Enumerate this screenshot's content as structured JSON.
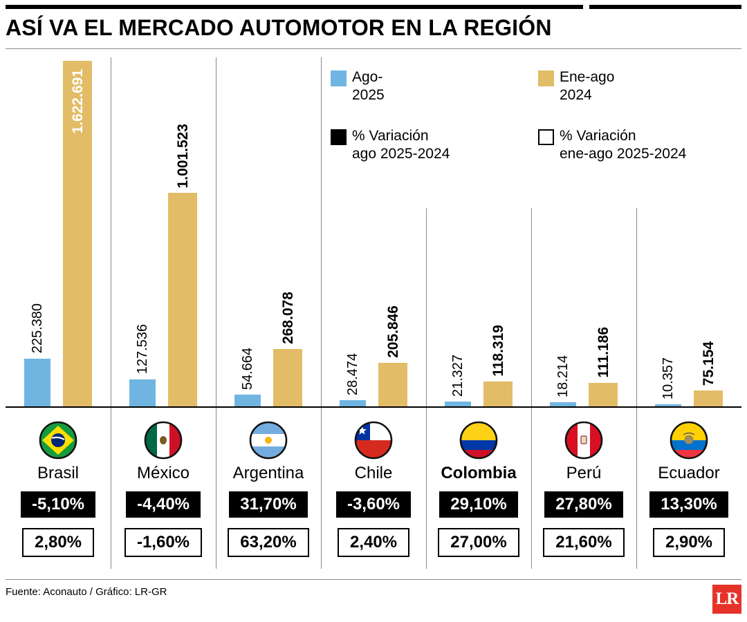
{
  "title": "ASÍ VA EL MERCADO AUTOMOTOR EN LA REGIÓN",
  "legend": {
    "items": [
      {
        "id": "ago-2025",
        "line1": "Ago-",
        "line2": "2025",
        "swatch_color": "#70b5e2"
      },
      {
        "id": "ene-ago-2024",
        "line1": "Ene-ago",
        "line2": "2024",
        "swatch_color": "#e2bc66"
      },
      {
        "id": "var-ago",
        "line1": "% Variación",
        "line2": "ago 2025-2024",
        "swatch_color": "#000000"
      },
      {
        "id": "var-ene-ago",
        "line1": "% Variación",
        "line2": "ene-ago 2025-2024",
        "swatch_color": "#ffffff"
      }
    ]
  },
  "chart_data": {
    "type": "bar",
    "title": "ASÍ VA EL MERCADO AUTOMOTOR EN LA REGIÓN",
    "series_names": [
      "Ago-2025",
      "Ene-ago 2024"
    ],
    "ylim": [
      0,
      1622691
    ],
    "grid": false,
    "legend_position": "top-right",
    "bar_colors": {
      "ago_2025": "#70b5e2",
      "ene_ago_2024": "#e2bc66"
    },
    "countries": [
      {
        "name": "Brasil",
        "ago_2025": 225380,
        "ago_2025_label": "225.380",
        "ene_ago_2024": 1622691,
        "ene_ago_2024_label": "1.622.691",
        "var_ago_2025_2024": "-5,10%",
        "var_ene_ago_2025_2024": "2,80%",
        "value_label_inside_bar": true
      },
      {
        "name": "México",
        "ago_2025": 127536,
        "ago_2025_label": "127.536",
        "ene_ago_2024": 1001523,
        "ene_ago_2024_label": "1.001.523",
        "var_ago_2025_2024": "-4,40%",
        "var_ene_ago_2025_2024": "-1,60%"
      },
      {
        "name": "Argentina",
        "ago_2025": 54664,
        "ago_2025_label": "54.664",
        "ene_ago_2024": 268078,
        "ene_ago_2024_label": "268.078",
        "var_ago_2025_2024": "31,70%",
        "var_ene_ago_2025_2024": "63,20%"
      },
      {
        "name": "Chile",
        "ago_2025": 28474,
        "ago_2025_label": "28.474",
        "ene_ago_2024": 205846,
        "ene_ago_2024_label": "205.846",
        "var_ago_2025_2024": "-3,60%",
        "var_ene_ago_2025_2024": "2,40%"
      },
      {
        "name": "Colombia",
        "ago_2025": 21327,
        "ago_2025_label": "21.327",
        "ene_ago_2024": 118319,
        "ene_ago_2024_label": "118.319",
        "var_ago_2025_2024": "29,10%",
        "var_ene_ago_2025_2024": "27,00%"
      },
      {
        "name": "Perú",
        "ago_2025": 18214,
        "ago_2025_label": "18.214",
        "ene_ago_2024": 111186,
        "ene_ago_2024_label": "111.186",
        "var_ago_2025_2024": "27,80%",
        "var_ene_ago_2025_2024": "21,60%"
      },
      {
        "name": "Ecuador",
        "ago_2025": 10357,
        "ago_2025_label": "10.357",
        "ene_ago_2024": 75154,
        "ene_ago_2024_label": "75.154",
        "var_ago_2025_2024": "13,30%",
        "var_ene_ago_2025_2024": "2,90%"
      }
    ]
  },
  "footer": {
    "source": "Fuente: Aconauto / Gráfico: LR-GR",
    "logo_text": "LR",
    "logo_color": "#e63329"
  }
}
